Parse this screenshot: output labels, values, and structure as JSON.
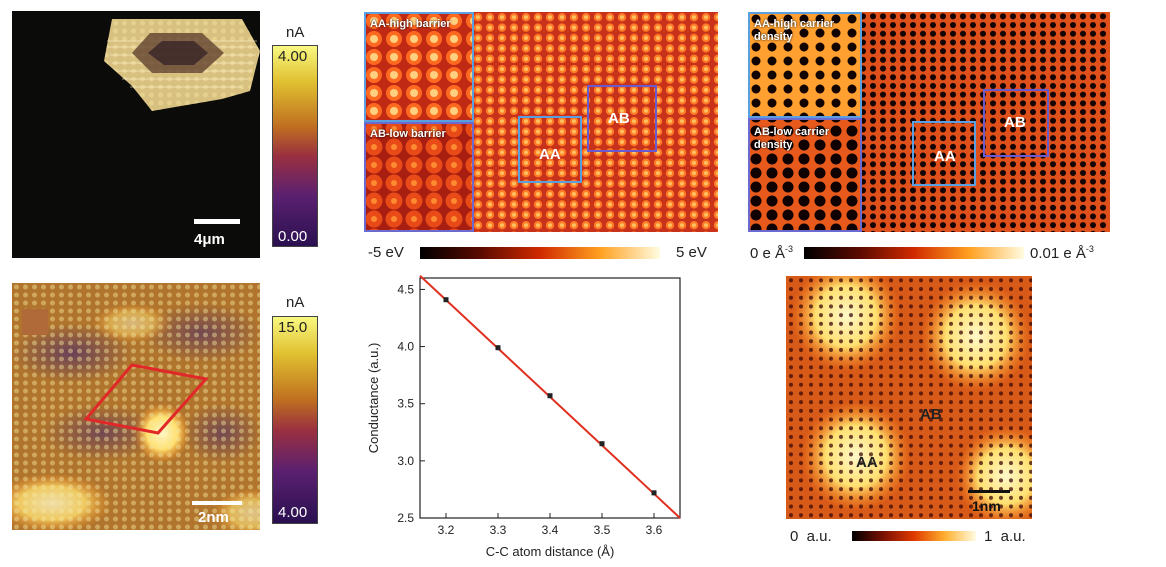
{
  "panel_afm_flake": {
    "unit": "nA",
    "cbar_max": "4.00",
    "cbar_min": "0.00",
    "scale_bar": "4μm"
  },
  "panel_afm_moire": {
    "unit": "nA",
    "cbar_max": "15.0",
    "cbar_min": "4.00",
    "scale_bar": "2nm"
  },
  "panel_barrier": {
    "inset_top": "AA-high barrier",
    "inset_bottom": "AB-low barrier",
    "label_aa": "AA",
    "label_ab": "AB",
    "cbar_min": "-5 eV",
    "cbar_max": "5 eV"
  },
  "panel_density": {
    "inset_top_line1": "AA-high carrier",
    "inset_top_line2": "density",
    "inset_bottom_line1": "AB-low carrier",
    "inset_bottom_line2": "density",
    "label_aa": "AA",
    "label_ab": "AB",
    "cbar_min": "0 e Å",
    "cbar_min_sup": "-3",
    "cbar_max": "0.01 e Å",
    "cbar_max_sup": "-3"
  },
  "panel_simulated": {
    "label_aa": "AA",
    "label_ab": "AB",
    "scale_bar": "1nm",
    "cbar_min": "0  a.u.",
    "cbar_max": "1  a.u."
  },
  "chart_data": {
    "type": "scatter",
    "title": "",
    "xlabel": "C-C atom distance (Å)",
    "ylabel": "Conductance (a.u.)",
    "xlim": [
      3.15,
      3.65
    ],
    "ylim": [
      2.5,
      4.6
    ],
    "x_ticks": [
      "3.2",
      "3.3",
      "3.4",
      "3.5",
      "3.6"
    ],
    "y_ticks": [
      "2.5",
      "3.0",
      "3.5",
      "4.0",
      "4.5"
    ],
    "x": [
      3.2,
      3.3,
      3.4,
      3.5,
      3.6
    ],
    "y": [
      4.41,
      3.99,
      3.57,
      3.15,
      2.72
    ],
    "fit_line": {
      "x": [
        3.15,
        3.65
      ],
      "y": [
        4.62,
        2.5
      ]
    },
    "colors": {
      "points": "#222222",
      "fit": "#e03020"
    }
  }
}
